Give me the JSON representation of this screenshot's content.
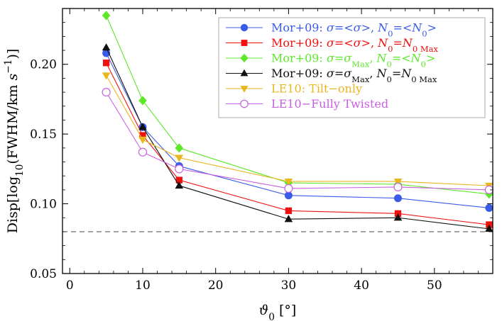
{
  "chart_data": {
    "type": "line",
    "xlabel": "ϑ0 [°]",
    "xlabel_parts": {
      "symbol": "ϑ",
      "sub": "0",
      "unit": " [°]"
    },
    "ylabel": "Disp[log10(FWHM/km s−1)]",
    "ylabel_parts": {
      "a": "Disp[log",
      "sub": "10",
      "b": "(FWHM/km ",
      "c": "s",
      "sup": "−1",
      "d": ")]"
    },
    "xlim": [
      -1,
      58
    ],
    "ylim": [
      0.05,
      0.24
    ],
    "xticks": [
      0,
      10,
      20,
      30,
      40,
      50
    ],
    "xtick_labels": [
      "0",
      "10",
      "20",
      "30",
      "40",
      "50"
    ],
    "yticks": [
      0.05,
      0.1,
      0.15,
      0.2
    ],
    "ytick_labels": [
      "0.05",
      "0.10",
      "0.15",
      "0.20"
    ],
    "reference_line": {
      "y": 0.08,
      "style": "dashed",
      "color": "#444444"
    },
    "x": [
      5,
      10,
      15,
      30,
      45,
      57.5
    ],
    "legend_position": "top-right",
    "series": [
      {
        "name": "Mor+09: σ=<σ>, N0=<N0>",
        "color": "#3a5be8",
        "marker": "circle-filled",
        "values": [
          0.208,
          0.155,
          0.127,
          0.106,
          0.104,
          0.097
        ]
      },
      {
        "name": "Mor+09: σ=<σ>, N0=N0 Max",
        "color": "#f01010",
        "marker": "square-filled",
        "values": [
          0.201,
          0.149,
          0.117,
          0.095,
          0.093,
          0.085
        ]
      },
      {
        "name": "Mor+09: σ=σMax, N0=<N0>",
        "color": "#5ee82a",
        "marker": "diamond-filled",
        "values": [
          0.235,
          0.174,
          0.14,
          0.115,
          0.114,
          0.107
        ]
      },
      {
        "name": "Mor+09: σ=σMax, N0=N0 Max",
        "color": "#111111",
        "marker": "triangle-up-filled",
        "values": [
          0.212,
          0.155,
          0.113,
          0.089,
          0.09,
          0.082
        ]
      },
      {
        "name": "LE10: Tilt−only",
        "color": "#e8b61e",
        "marker": "triangle-down-filled",
        "values": [
          0.192,
          0.146,
          0.133,
          0.116,
          0.116,
          0.113
        ]
      },
      {
        "name": "LE10−Fully Twisted",
        "color": "#c85fe0",
        "marker": "circle-open",
        "values": [
          0.18,
          0.137,
          0.125,
          0.111,
          0.112,
          0.11
        ]
      }
    ],
    "legend_entries": [
      {
        "prefix": "Mor+09: ",
        "parts": [
          [
            "σ",
            "i"
          ],
          [
            "=<",
            "n"
          ],
          [
            "σ",
            "i"
          ],
          [
            ">, ",
            "n"
          ],
          [
            "N",
            "i"
          ],
          [
            "0",
            "sub"
          ],
          [
            "=<",
            "n"
          ],
          [
            "N",
            "i"
          ],
          [
            "0",
            "sub"
          ],
          [
            ">",
            "n"
          ]
        ]
      },
      {
        "prefix": "Mor+09: ",
        "parts": [
          [
            "σ",
            "i"
          ],
          [
            "=<",
            "n"
          ],
          [
            "σ",
            "i"
          ],
          [
            ">, ",
            "n"
          ],
          [
            "N",
            "i"
          ],
          [
            "0",
            "sub"
          ],
          [
            "=",
            "n"
          ],
          [
            "N",
            "i"
          ],
          [
            "0 Max",
            "sub"
          ]
        ]
      },
      {
        "prefix": "Mor+09: ",
        "parts": [
          [
            "σ",
            "i"
          ],
          [
            "=",
            "n"
          ],
          [
            "σ",
            "i"
          ],
          [
            "Max",
            "sub"
          ],
          [
            ", ",
            "n"
          ],
          [
            "N",
            "i"
          ],
          [
            "0",
            "sub"
          ],
          [
            "=<",
            "n"
          ],
          [
            "N",
            "i"
          ],
          [
            "0",
            "sub"
          ],
          [
            ">",
            "n"
          ]
        ]
      },
      {
        "prefix": "Mor+09: ",
        "parts": [
          [
            "σ",
            "i"
          ],
          [
            "=",
            "n"
          ],
          [
            "σ",
            "i"
          ],
          [
            "Max",
            "sub"
          ],
          [
            ", ",
            "n"
          ],
          [
            "N",
            "i"
          ],
          [
            "0",
            "sub"
          ],
          [
            "=",
            "n"
          ],
          [
            "N",
            "i"
          ],
          [
            "0 Max",
            "sub"
          ]
        ]
      },
      {
        "prefix": "LE10: Tilt−only",
        "parts": []
      },
      {
        "prefix": "LE10−Fully Twisted",
        "parts": []
      }
    ]
  }
}
